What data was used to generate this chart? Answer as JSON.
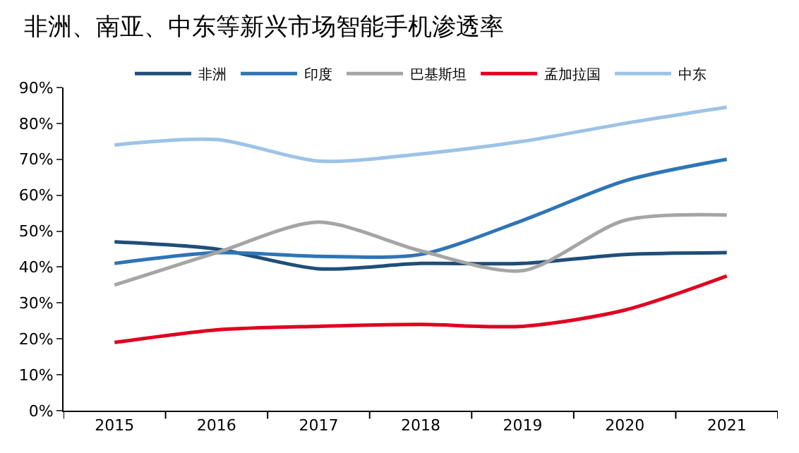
{
  "chart_data": {
    "type": "line",
    "title": "非洲、南亚、中东等新兴市场智能手机渗透率",
    "categories": [
      "2015",
      "2016",
      "2017",
      "2018",
      "2019",
      "2020",
      "2021"
    ],
    "series": [
      {
        "name": "非洲",
        "color": "#1f4e79",
        "values": [
          47,
          45,
          39.5,
          41,
          41,
          43.5,
          44
        ]
      },
      {
        "name": "印度",
        "color": "#2e75b6",
        "values": [
          41,
          44,
          43,
          43.5,
          53,
          64,
          70
        ]
      },
      {
        "name": "巴基斯坦",
        "color": "#a5a5a5",
        "values": [
          35,
          44,
          52.5,
          44.5,
          39,
          53,
          54.5
        ]
      },
      {
        "name": "孟加拉国",
        "color": "#e00020",
        "values": [
          19,
          22.5,
          23.5,
          24,
          23.5,
          28,
          37.5
        ]
      },
      {
        "name": "中东",
        "color": "#9dc3e6",
        "values": [
          74,
          75.5,
          69.5,
          71.5,
          75,
          80,
          84.5
        ]
      }
    ],
    "ylim": [
      0,
      90
    ],
    "yticks": [
      {
        "value": 0,
        "label": "0%"
      },
      {
        "value": 10,
        "label": "10%"
      },
      {
        "value": 20,
        "label": "20%"
      },
      {
        "value": 30,
        "label": "30%"
      },
      {
        "value": 40,
        "label": "40%"
      },
      {
        "value": 50,
        "label": "50%"
      },
      {
        "value": 60,
        "label": "60%"
      },
      {
        "value": 70,
        "label": "70%"
      },
      {
        "value": 80,
        "label": "80%"
      },
      {
        "value": 90,
        "label": "90%"
      }
    ],
    "legend": "top",
    "marker": "none",
    "line_style": "solid"
  }
}
